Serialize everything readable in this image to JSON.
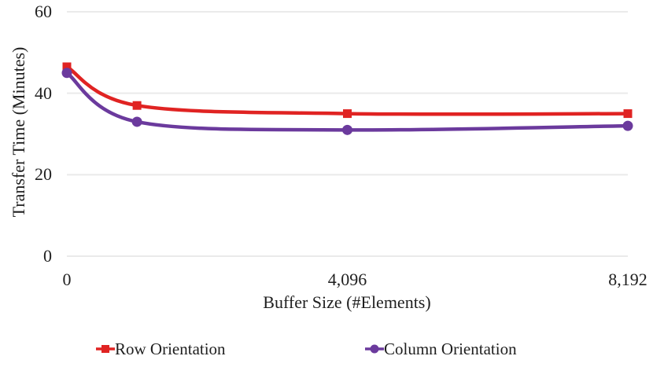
{
  "chart_data": {
    "type": "line",
    "title": "",
    "xlabel": "Buffer Size (#Elements)",
    "ylabel": "Transfer Time (Minutes)",
    "x": [
      0,
      1024,
      4096,
      8192
    ],
    "series": [
      {
        "name": "Row Orientation",
        "color": "#E02322",
        "marker": "square",
        "values": [
          46.5,
          37,
          35,
          35
        ]
      },
      {
        "name": "Column Orientation",
        "color": "#6B3A9D",
        "marker": "circle",
        "values": [
          45,
          33,
          31,
          32
        ]
      }
    ],
    "xlim": [
      0,
      8192
    ],
    "ylim": [
      0,
      60
    ],
    "yticks": [
      {
        "value": 0,
        "label": "0"
      },
      {
        "value": 20,
        "label": "20"
      },
      {
        "value": 40,
        "label": "40"
      },
      {
        "value": 60,
        "label": "60"
      }
    ],
    "xticks": [
      {
        "value": 0,
        "label": "0"
      },
      {
        "value": 4096,
        "label": "4,096"
      },
      {
        "value": 8192,
        "label": "8,192"
      }
    ],
    "grid": "horizontal",
    "gridline_color": "#EAEAEA",
    "text_color": "#1f1f1f",
    "legend_position": "bottom"
  }
}
